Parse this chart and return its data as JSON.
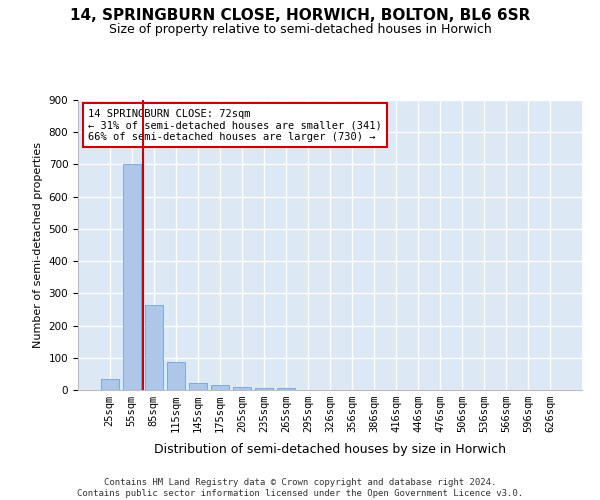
{
  "title": "14, SPRINGBURN CLOSE, HORWICH, BOLTON, BL6 6SR",
  "subtitle": "Size of property relative to semi-detached houses in Horwich",
  "xlabel": "Distribution of semi-detached houses by size in Horwich",
  "ylabel": "Number of semi-detached properties",
  "categories": [
    "25sqm",
    "55sqm",
    "85sqm",
    "115sqm",
    "145sqm",
    "175sqm",
    "205sqm",
    "235sqm",
    "265sqm",
    "295sqm",
    "326sqm",
    "356sqm",
    "386sqm",
    "416sqm",
    "446sqm",
    "476sqm",
    "506sqm",
    "536sqm",
    "566sqm",
    "596sqm",
    "626sqm"
  ],
  "values": [
    35,
    700,
    265,
    88,
    22,
    17,
    10,
    7,
    5,
    0,
    0,
    0,
    0,
    0,
    0,
    0,
    0,
    0,
    0,
    0,
    0
  ],
  "bar_color": "#aec6e8",
  "bar_edge_color": "#5b9bd5",
  "vline_x": 1.5,
  "vline_color": "#cc0000",
  "annotation_text": "14 SPRINGBURN CLOSE: 72sqm\n← 31% of semi-detached houses are smaller (341)\n66% of semi-detached houses are larger (730) →",
  "annotation_box_color": "#ffffff",
  "annotation_box_edge_color": "#cc0000",
  "ylim": [
    0,
    900
  ],
  "yticks": [
    0,
    100,
    200,
    300,
    400,
    500,
    600,
    700,
    800,
    900
  ],
  "footer": "Contains HM Land Registry data © Crown copyright and database right 2024.\nContains public sector information licensed under the Open Government Licence v3.0.",
  "bg_color": "#dde8f5",
  "grid_color": "#ffffff",
  "title_fontsize": 11,
  "subtitle_fontsize": 9,
  "xlabel_fontsize": 9,
  "ylabel_fontsize": 8,
  "tick_fontsize": 7.5,
  "annotation_fontsize": 7.5,
  "footer_fontsize": 6.5
}
